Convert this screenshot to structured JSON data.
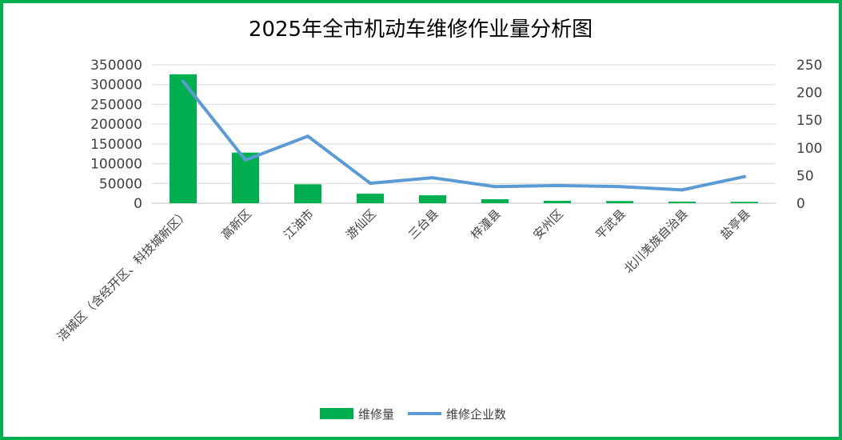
{
  "chart_data": {
    "type": "bar+line",
    "title": "2025年全市机动车维修作业量分析图",
    "categories": [
      "涪城区（含经开区、科技城新区）",
      "高新区",
      "江油市",
      "游仙区",
      "三台县",
      "梓潼县",
      "安州区",
      "平武县",
      "北川羌族自治县",
      "盐亭县"
    ],
    "series": [
      {
        "name": "维修量",
        "type": "bar",
        "axis": "left",
        "color": "#00b050",
        "values": [
          326000,
          128000,
          48000,
          24000,
          20000,
          10000,
          6000,
          5500,
          4000,
          3500
        ]
      },
      {
        "name": "维修企业数",
        "type": "line",
        "axis": "right",
        "color": "#5b9bd5",
        "values": [
          220,
          78,
          121,
          36,
          46,
          30,
          32,
          30,
          24,
          48
        ]
      }
    ],
    "y_left": {
      "min": 0,
      "max": 350000,
      "ticks": [
        "0",
        "50000",
        "100000",
        "150000",
        "200000",
        "250000",
        "300000",
        "350000"
      ]
    },
    "y_right": {
      "min": 0,
      "max": 250,
      "ticks": [
        "0",
        "50",
        "100",
        "150",
        "200",
        "250"
      ]
    },
    "grid": true,
    "legend_position": "bottom"
  }
}
